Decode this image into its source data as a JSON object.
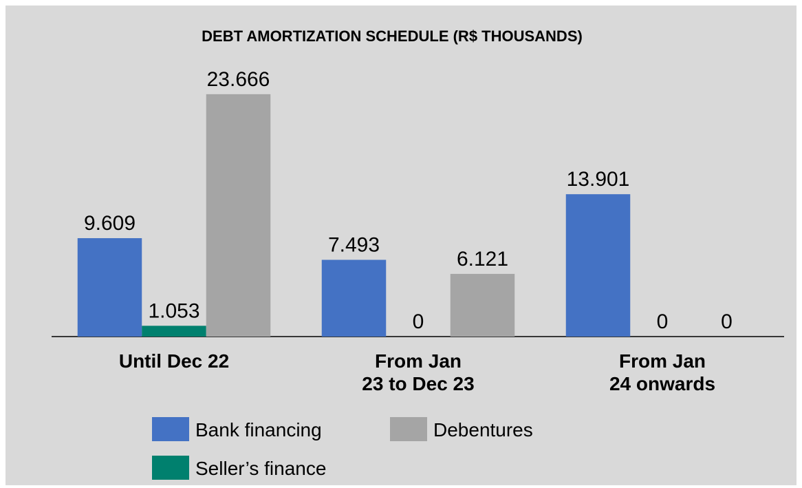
{
  "chart_data": {
    "type": "bar",
    "title": "DEBT AMORTIZATION SCHEDULE (R$ THOUSANDS)",
    "categories": [
      "Until Dec 22",
      "From Jan\n23 to Dec 23",
      "From Jan\n24 onwards"
    ],
    "series": [
      {
        "name": "Bank financing",
        "color": "#4472c4",
        "values": [
          9609,
          7493,
          13901
        ],
        "value_labels": [
          "9.609",
          "7.493",
          "13.901"
        ]
      },
      {
        "name": "Seller’s finance",
        "color": "#00806e",
        "values": [
          1053,
          0,
          0
        ],
        "value_labels": [
          "1.053",
          "0",
          "0"
        ]
      },
      {
        "name": "Debentures",
        "color": "#a5a5a5",
        "values": [
          23666,
          6121,
          0
        ],
        "value_labels": [
          "23.666",
          "6.121",
          "0"
        ]
      }
    ],
    "ylim": [
      0,
      25000
    ]
  }
}
